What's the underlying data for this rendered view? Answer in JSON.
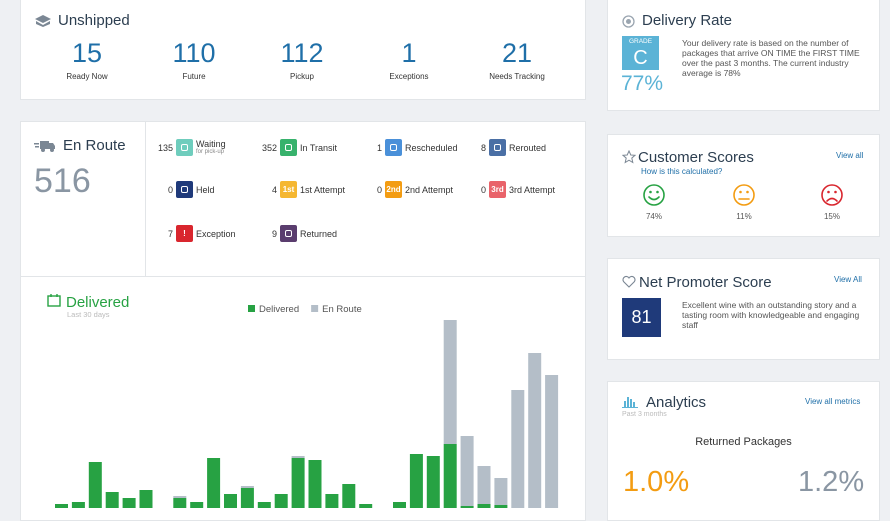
{
  "unshipped": {
    "title": "Unshipped",
    "stats": [
      {
        "value": 15,
        "label": "Ready Now"
      },
      {
        "value": 110,
        "label": "Future"
      },
      {
        "value": 112,
        "label": "Pickup"
      },
      {
        "value": 1,
        "label": "Exceptions"
      },
      {
        "value": 21,
        "label": "Needs Tracking"
      }
    ]
  },
  "en_route": {
    "title": "En Route",
    "total": 516,
    "statuses": [
      {
        "count": 135,
        "label": "Waiting",
        "sub": "for pick-up",
        "color": "#6fcdbd"
      },
      {
        "count": 352,
        "label": "In Transit",
        "color": "#37b26c"
      },
      {
        "count": 1,
        "label": "Rescheduled",
        "color": "#4a90d9"
      },
      {
        "count": 8,
        "label": "Rerouted",
        "color": "#4a6fa5"
      },
      {
        "count": 0,
        "label": "Held",
        "color": "#1f3a7a"
      },
      {
        "count": 4,
        "label": "1st Attempt",
        "badge": "1st",
        "color": "#f5b731"
      },
      {
        "count": 0,
        "label": "2nd Attempt",
        "badge": "2nd",
        "color": "#f39c12"
      },
      {
        "count": 0,
        "label": "3rd Attempt",
        "badge": "3rd",
        "color": "#e9636a"
      },
      {
        "count": 7,
        "label": "Exception",
        "badge": "!",
        "color": "#d9262e"
      },
      {
        "count": 9,
        "label": "Returned",
        "color": "#5a3d6e"
      }
    ]
  },
  "delivery_rate": {
    "title": "Delivery Rate",
    "grade_label": "GRADE",
    "grade": "C",
    "rate": "77%",
    "text": "Your delivery rate is based on the number of packages that arrive ON TIME the FIRST TIME over the past 3 months. The current industry average is 78%"
  },
  "customer_scores": {
    "title": "Customer Scores",
    "link": "View all",
    "subtitle": "How is this calculated?",
    "scores": [
      "74%",
      "11%",
      "15%"
    ]
  },
  "nps": {
    "title": "Net Promoter Score",
    "link": "View All",
    "score": 81,
    "text": "Excellent wine with an outstanding story and a tasting room with knowledgeable and engaging staff"
  },
  "analytics": {
    "title": "Analytics",
    "link": "View all metrics",
    "subtitle": "Past 3 months",
    "metric": "Returned Packages",
    "values": [
      "1.0%",
      "1.2%"
    ]
  },
  "chart_data": {
    "type": "bar",
    "stacked": true,
    "title": "Delivered",
    "subtitle": "Last 30 days",
    "ylim": [
      0,
      200
    ],
    "series": [
      {
        "name": "Delivered",
        "color": "#27a243",
        "values": [
          4,
          6,
          46,
          16,
          10,
          18,
          0,
          10,
          6,
          50,
          14,
          20,
          6,
          14,
          50,
          48,
          14,
          24,
          4,
          0,
          6,
          54,
          52,
          64,
          2,
          4,
          3,
          0,
          0,
          0
        ]
      },
      {
        "name": "En Route",
        "color": "#b4bec8",
        "values": [
          0,
          0,
          0,
          0,
          0,
          0,
          0,
          2,
          0,
          0,
          0,
          2,
          0,
          0,
          2,
          0,
          0,
          0,
          0,
          0,
          0,
          0,
          0,
          124,
          70,
          38,
          27,
          118,
          155,
          133
        ]
      }
    ]
  }
}
